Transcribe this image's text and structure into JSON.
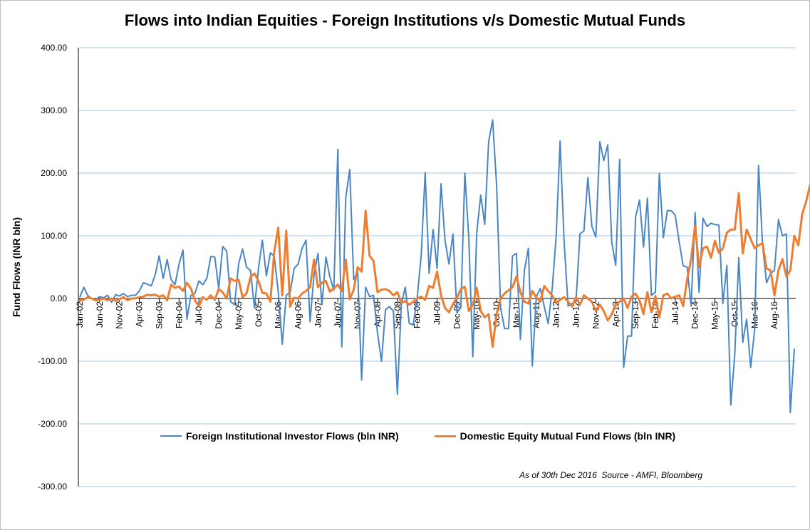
{
  "chart_data": {
    "type": "line",
    "title": "Flows into Indian Equities - Foreign Institutions v/s Domestic Mutual Funds",
    "ylabel": "Fund Flows  (INR bln)",
    "xlabel": "",
    "ylim": [
      -300,
      400
    ],
    "yticks": [
      "400.00",
      "300.00",
      "200.00",
      "100.00",
      "0.00",
      "-100.00",
      "-200.00",
      "-300.00"
    ],
    "y_tick_values": [
      400,
      300,
      200,
      100,
      0,
      -100,
      -200,
      -300
    ],
    "grid": "horizontal",
    "legend_position": "bottom",
    "x_start": "Jan-02",
    "x_end": "Dec-16",
    "x_tick_every_months": 5,
    "x_ticks": [
      "Jan-02",
      "Jun-02",
      "Nov-02",
      "Apr-03",
      "Sep-03",
      "Feb-04",
      "Jul-04",
      "Dec-04",
      "May-05",
      "Oct-05",
      "Mar-06",
      "Aug-06",
      "Jan-07",
      "Jun-07",
      "Nov-07",
      "Apr-08",
      "Sep-08",
      "Feb-09",
      "Jul-09",
      "Dec-09",
      "May-10",
      "Oct-10",
      "Mar-11",
      "Aug-11",
      "Jan-12",
      "Jun-12",
      "Nov-12",
      "Apr-13",
      "Sep-13",
      "Feb-14",
      "Jul-14",
      "Dec-14",
      "May-15",
      "Oct-15",
      "Mar-16",
      "Aug-16"
    ],
    "series": [
      {
        "name": "Foreign Institutional Investor Flows (bln INR)",
        "color": "#4a86c5",
        "values": [
          2,
          18,
          5,
          0,
          -2,
          3,
          1,
          5,
          -6,
          6,
          4,
          8,
          3,
          5,
          5,
          12,
          25,
          23,
          20,
          38,
          68,
          32,
          62,
          30,
          22,
          55,
          77,
          -33,
          5,
          8,
          28,
          22,
          32,
          67,
          66,
          16,
          83,
          76,
          -5,
          -10,
          55,
          79,
          50,
          45,
          -15,
          48,
          93,
          36,
          73,
          67,
          10,
          -73,
          5,
          10,
          48,
          55,
          80,
          93,
          -37,
          38,
          72,
          -10,
          66,
          35,
          13,
          238,
          -77,
          160,
          206,
          30,
          44,
          -130,
          18,
          3,
          5,
          -55,
          -100,
          -18,
          -13,
          -20,
          -153,
          -8,
          18,
          -40,
          -42,
          2,
          68,
          201,
          40,
          110,
          48,
          183,
          93,
          55,
          103,
          -22,
          -15,
          200,
          95,
          -93,
          105,
          165,
          118,
          250,
          285,
          180,
          -15,
          -48,
          -48,
          68,
          72,
          -65,
          45,
          80,
          -108,
          3,
          16,
          -13,
          -40,
          15,
          100,
          251,
          92,
          -12,
          -8,
          -5,
          103,
          108,
          193,
          115,
          98,
          250,
          220,
          245,
          90,
          53,
          222,
          -110,
          -60,
          -60,
          130,
          157,
          82,
          160,
          5,
          10,
          200,
          97,
          140,
          140,
          133,
          90,
          52,
          50,
          -12,
          137,
          10,
          128,
          115,
          120,
          118,
          117,
          -8,
          53,
          -170,
          -90,
          65,
          -70,
          -33,
          -110,
          -50,
          212,
          85,
          25,
          40,
          45,
          126,
          100,
          103,
          -182,
          -80
        ]
      },
      {
        "name": "Domestic Equity Mutual Fund Flows (bln INR)",
        "color": "#ed7d31",
        "values": [
          -3,
          -2,
          2,
          0,
          -3,
          -2,
          0,
          -3,
          0,
          -4,
          -1,
          2,
          -3,
          0,
          0,
          2,
          3,
          6,
          5,
          6,
          3,
          5,
          -3,
          22,
          17,
          19,
          12,
          25,
          16,
          -3,
          -12,
          2,
          -2,
          5,
          -2,
          15,
          10,
          0,
          32,
          28,
          30,
          2,
          8,
          34,
          40,
          28,
          9,
          8,
          -5,
          75,
          113,
          5,
          108,
          -13,
          1,
          0,
          8,
          12,
          18,
          62,
          18,
          25,
          28,
          11,
          16,
          22,
          12,
          62,
          -1,
          14,
          50,
          43,
          140,
          68,
          60,
          10,
          14,
          15,
          12,
          5,
          10,
          -7,
          -4,
          -10,
          -5,
          0,
          3,
          -2,
          20,
          17,
          43,
          5,
          -15,
          -22,
          -9,
          1,
          15,
          19,
          -20,
          -10,
          17,
          -20,
          -30,
          -25,
          -77,
          -25,
          0,
          8,
          13,
          18,
          35,
          10,
          -5,
          -8,
          12,
          2,
          -5,
          20,
          12,
          5,
          -7,
          -2,
          2,
          -5,
          -13,
          2,
          -10,
          5,
          0,
          -5,
          -20,
          -10,
          -20,
          -35,
          -25,
          -10,
          -5,
          0,
          -15,
          3,
          8,
          -3,
          -25,
          10,
          -22,
          4,
          -30,
          5,
          8,
          0,
          3,
          5,
          -12,
          30,
          63,
          116,
          50,
          80,
          83,
          65,
          92,
          73,
          80,
          105,
          110,
          110,
          168,
          72,
          110,
          95,
          80,
          85,
          88,
          48,
          45,
          5,
          45,
          63,
          35,
          45,
          100,
          85,
          135,
          155,
          182
        ]
      }
    ]
  },
  "source_note": "As of 30th Dec 2016  Source - AMFI, Bloomberg"
}
